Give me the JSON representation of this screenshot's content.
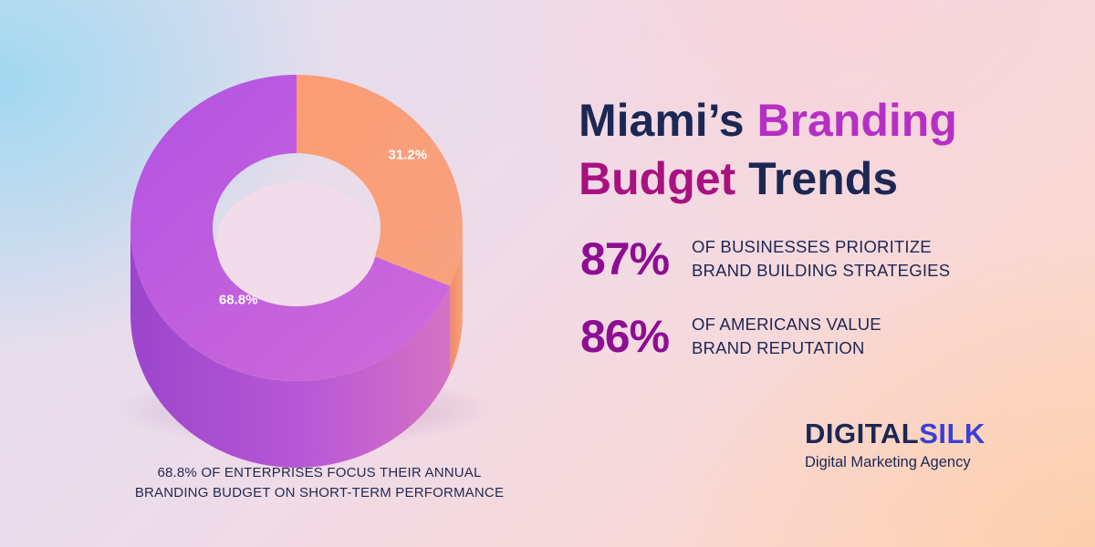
{
  "title": {
    "part1": "Miami’s",
    "part2": "Branding",
    "part3": "Budget",
    "part4": "Trends"
  },
  "stats": [
    {
      "value": "87%",
      "line1": "OF BUSINESSES PRIORITIZE",
      "line2": "BRAND BUILDING STRATEGIES"
    },
    {
      "value": "86%",
      "line1": "OF AMERICANS VALUE",
      "line2": "BRAND REPUTATION"
    }
  ],
  "caption": {
    "line1": "68.8% OF ENTERPRISES FOCUS THEIR ANNUAL",
    "line2": "BRANDING BUDGET ON SHORT-TERM PERFORMANCE"
  },
  "brand": {
    "name_part1": "DIGITAL",
    "name_part2": "SILK",
    "tagline": "Digital Marketing Agency"
  },
  "chart_data": {
    "type": "pie",
    "variant": "donut",
    "slices": [
      {
        "label": "31.2%",
        "value": 31.2,
        "color": "#f99b71"
      },
      {
        "label": "68.8%",
        "value": 68.8,
        "color": "#c45fe0"
      }
    ]
  },
  "colors": {
    "navy": "#1c2754",
    "magenta": "#b62fc5",
    "purple_stat": "#8e0d93",
    "silk_blue": "#3b3fd8"
  }
}
